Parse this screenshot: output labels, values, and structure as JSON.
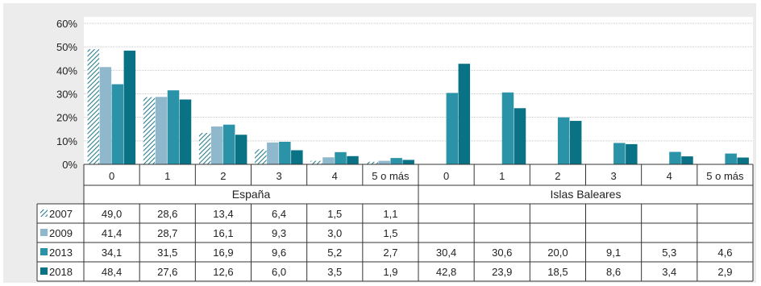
{
  "colors": {
    "2007": "#2a7f8f",
    "2009": "#8fb8cc",
    "2013": "#2b93a7",
    "2018": "#0a7285"
  },
  "chart_data": {
    "type": "bar",
    "y_ticks": [
      "0%",
      "10%",
      "20%",
      "30%",
      "40%",
      "50%",
      "60%"
    ],
    "ylim": [
      0,
      60
    ],
    "grid": true,
    "groups": [
      {
        "name": "España",
        "categories": [
          "0",
          "1",
          "2",
          "3",
          "4",
          "5 o más"
        ],
        "series": [
          {
            "name": "2007",
            "values": [
              49.0,
              28.6,
              13.4,
              6.4,
              1.5,
              1.1
            ],
            "labels": [
              "49,0",
              "28,6",
              "13,4",
              "6,4",
              "1,5",
              "1,1"
            ]
          },
          {
            "name": "2009",
            "values": [
              41.4,
              28.7,
              16.1,
              9.3,
              3.0,
              1.5
            ],
            "labels": [
              "41,4",
              "28,7",
              "16,1",
              "9,3",
              "3,0",
              "1,5"
            ]
          },
          {
            "name": "2013",
            "values": [
              34.1,
              31.5,
              16.9,
              9.6,
              5.2,
              2.7
            ],
            "labels": [
              "34,1",
              "31,5",
              "16,9",
              "9,6",
              "5,2",
              "2,7"
            ]
          },
          {
            "name": "2018",
            "values": [
              48.4,
              27.6,
              12.6,
              6.0,
              3.5,
              1.9
            ],
            "labels": [
              "48,4",
              "27,6",
              "12,6",
              "6,0",
              "3,5",
              "1,9"
            ]
          }
        ]
      },
      {
        "name": "Islas Baleares",
        "categories": [
          "0",
          "1",
          "2",
          "3",
          "4",
          "5 o más"
        ],
        "series": [
          {
            "name": "2007",
            "values": [
              null,
              null,
              null,
              null,
              null,
              null
            ],
            "labels": [
              "",
              "",
              "",
              "",
              "",
              ""
            ]
          },
          {
            "name": "2009",
            "values": [
              null,
              null,
              null,
              null,
              null,
              null
            ],
            "labels": [
              "",
              "",
              "",
              "",
              "",
              ""
            ]
          },
          {
            "name": "2013",
            "values": [
              30.4,
              30.6,
              20.0,
              9.1,
              5.3,
              4.6
            ],
            "labels": [
              "30,4",
              "30,6",
              "20,0",
              "9,1",
              "5,3",
              "4,6"
            ]
          },
          {
            "name": "2018",
            "values": [
              42.8,
              23.9,
              18.5,
              8.6,
              3.4,
              2.9
            ],
            "labels": [
              "42,8",
              "23,9",
              "18,5",
              "8,6",
              "3,4",
              "2,9"
            ]
          }
        ]
      }
    ]
  }
}
